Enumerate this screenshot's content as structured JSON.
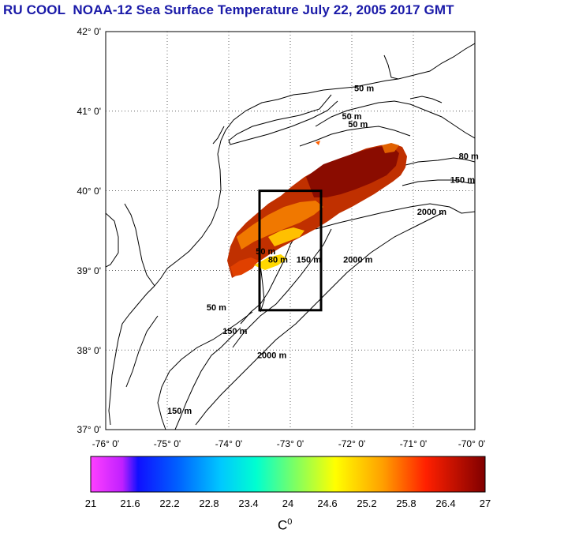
{
  "title": "RU COOL  NOAA-12 Sea Surface Temperature July 22, 2005 2017 GMT",
  "map": {
    "lat_ticks": [
      "42° 0'",
      "41° 0'",
      "40° 0'",
      "39° 0'",
      "38° 0'",
      "37° 0'"
    ],
    "lon_ticks": [
      "-76° 0'",
      "-75° 0'",
      "-74° 0'",
      "-73° 0'",
      "-72° 0'",
      "-71° 0'",
      "-70° 0'"
    ],
    "lat_range": [
      37,
      42
    ],
    "lon_range": [
      -76,
      -70
    ],
    "study_box": {
      "lon_min": -73.5,
      "lon_max": -72.5,
      "lat_min": 38.5,
      "lat_max": 40.0
    },
    "contour_labels": [
      {
        "text": "50 m",
        "lon": -71.8,
        "lat": 41.25
      },
      {
        "text": "50 m",
        "lon": -72.0,
        "lat": 40.9
      },
      {
        "text": "50 m",
        "lon": -71.9,
        "lat": 40.8
      },
      {
        "text": "80 m",
        "lon": -70.1,
        "lat": 40.4
      },
      {
        "text": "150 m",
        "lon": -70.2,
        "lat": 40.1
      },
      {
        "text": "2000 m",
        "lon": -70.7,
        "lat": 39.7
      },
      {
        "text": "50 m",
        "lon": -73.4,
        "lat": 39.2
      },
      {
        "text": "80 m",
        "lon": -73.2,
        "lat": 39.1
      },
      {
        "text": "150 m",
        "lon": -72.7,
        "lat": 39.1
      },
      {
        "text": "2000 m",
        "lon": -71.9,
        "lat": 39.1
      },
      {
        "text": "50 m",
        "lon": -74.2,
        "lat": 38.5
      },
      {
        "text": "150 m",
        "lon": -73.9,
        "lat": 38.2
      },
      {
        "text": "2000 m",
        "lon": -73.3,
        "lat": 37.9
      },
      {
        "text": "150 m",
        "lon": -74.8,
        "lat": 37.2
      }
    ],
    "colors": {
      "box": "#000000",
      "land": "#ffffff",
      "grid": "#000000"
    }
  },
  "colorbar": {
    "labels": [
      "21",
      "21.6",
      "22.2",
      "22.8",
      "23.4",
      "24",
      "24.6",
      "25.2",
      "25.8",
      "26.4",
      "27"
    ],
    "min": 21,
    "max": 27,
    "unit_label": "C",
    "unit_sup": "0"
  }
}
